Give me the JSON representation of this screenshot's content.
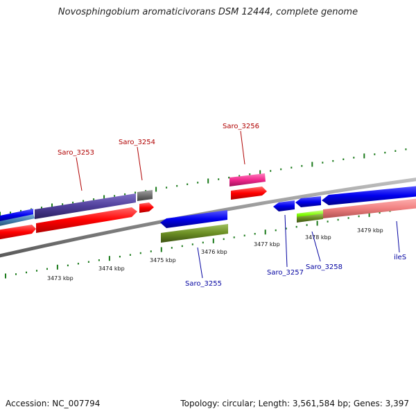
{
  "title": "Novosphingobium aromaticivorans DSM 12444, complete genome",
  "footer": {
    "accession": "Accession: NC_007794",
    "topology": "Topology: circular; Length: 3,561,584 bp; Genes: 3,397"
  },
  "ticks": [
    "3473 kbp",
    "3474 kbp",
    "3475 kbp",
    "3476 kbp",
    "3477 kbp",
    "3478 kbp",
    "3479 kbp"
  ],
  "gene_labels": {
    "saro_3253": "Saro_3253",
    "saro_3254": "Saro_3254",
    "saro_3256": "Saro_3256",
    "saro_3255": "Saro_3255",
    "saro_3257": "Saro_3257",
    "saro_3258": "Saro_3258",
    "iles": "ileS"
  },
  "colors": {
    "backbone": "#8c8c8c",
    "red": "#ff0000",
    "purple": "#4f3f9a",
    "gray": "#707070",
    "pink": "#f0288c",
    "blue": "#0000ee",
    "olive": "#6b8e23",
    "lime": "#7cfc00",
    "salmon": "#f08080",
    "steelblue": "#4682b4",
    "tick_green": "#1a7a1a",
    "label_red": "#b00000",
    "label_blue": "#0000a0"
  }
}
